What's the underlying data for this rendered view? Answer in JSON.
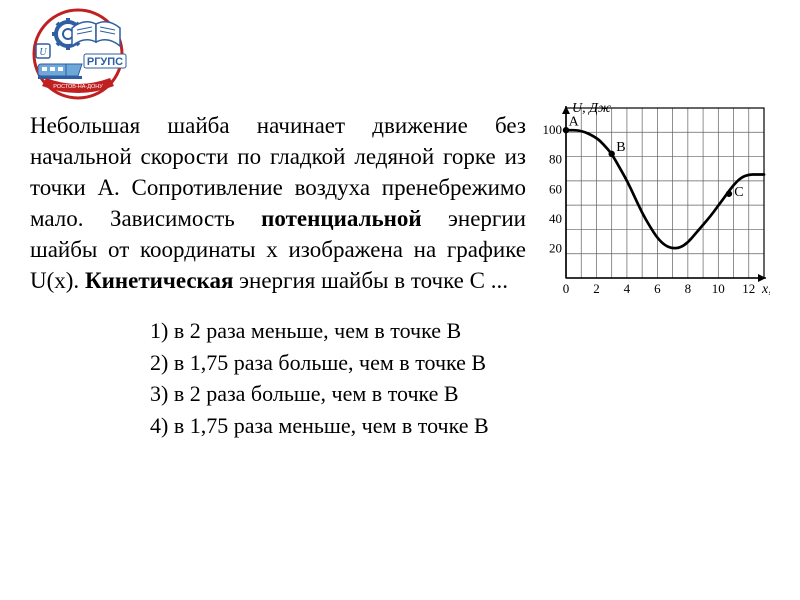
{
  "logo": {
    "label_text": "РГУПС",
    "ribbon_text": "РОСТОВ-НА-ДОНУ",
    "u_badge": "U",
    "colors": {
      "blue": "#2e5fa3",
      "red": "#c02020",
      "light_blue": "#6fa7d9",
      "white": "#ffffff",
      "gray": "#8a8f93"
    }
  },
  "problem": {
    "t1": "Небольшая шайба начинает движение без начальной скорости по гладкой ледяной горке из точки А. Сопротивление воздуха пренебрежимо мало. Зависимость ",
    "b1": "потенциальной",
    "t2": " энергии шайбы от координаты х изображена на графике U(x). ",
    "b2": "Кинетическая",
    "t3": " энергия шайбы в точке С ..."
  },
  "answers": {
    "a1": "1) в 2 раза меньше, чем в точке В",
    "a2": "2) в 1,75 раза больше, чем в точке В",
    "a3": "3) в 2 раза больше, чем в точке В",
    "a4": "4) в 1,75 раза меньше, чем в точке В"
  },
  "chart": {
    "title_y": "U, Дж",
    "title_x": "x, м",
    "y_ticks": [
      20,
      40,
      60,
      80,
      100
    ],
    "x_ticks": [
      0,
      2,
      4,
      6,
      8,
      10,
      12
    ],
    "xlim": [
      0,
      13
    ],
    "ylim": [
      0,
      115
    ],
    "grid_cols": 13,
    "grid_rows": 7,
    "colors": {
      "frame": "#000000",
      "grid": "#606060",
      "curve": "#000000",
      "text": "#000000",
      "arrow": "#000000"
    },
    "curve_points": [
      [
        0,
        100
      ],
      [
        1,
        100
      ],
      [
        2,
        95
      ],
      [
        2.5,
        90
      ],
      [
        3,
        84
      ],
      [
        3.5,
        75
      ],
      [
        4,
        66
      ],
      [
        4.5,
        55
      ],
      [
        5,
        44
      ],
      [
        5.5,
        35
      ],
      [
        6,
        27
      ],
      [
        6.5,
        22
      ],
      [
        7,
        20
      ],
      [
        7.5,
        20.5
      ],
      [
        8,
        24
      ],
      [
        8.5,
        30
      ],
      [
        9,
        36
      ],
      [
        9.5,
        42
      ],
      [
        10,
        49
      ],
      [
        10.5,
        56
      ],
      [
        11,
        63
      ],
      [
        11.5,
        68
      ],
      [
        12,
        70
      ],
      [
        12.5,
        70
      ],
      [
        13,
        70
      ]
    ],
    "line_width": 2.7,
    "marker_r": 3.2,
    "markers": [
      {
        "label": "A",
        "x": 0,
        "y": 100,
        "dx": 0.35,
        "dy": 8,
        "anchor": "start"
      },
      {
        "label": "B",
        "x": 3.0,
        "y": 84,
        "dx": 0.6,
        "dy": 5,
        "anchor": "start"
      },
      {
        "label": "C",
        "x": 10.7,
        "y": 57,
        "dx": 0.7,
        "dy": -4,
        "anchor": "start"
      }
    ],
    "axis_font_size": 14,
    "tick_font_size": 13
  }
}
